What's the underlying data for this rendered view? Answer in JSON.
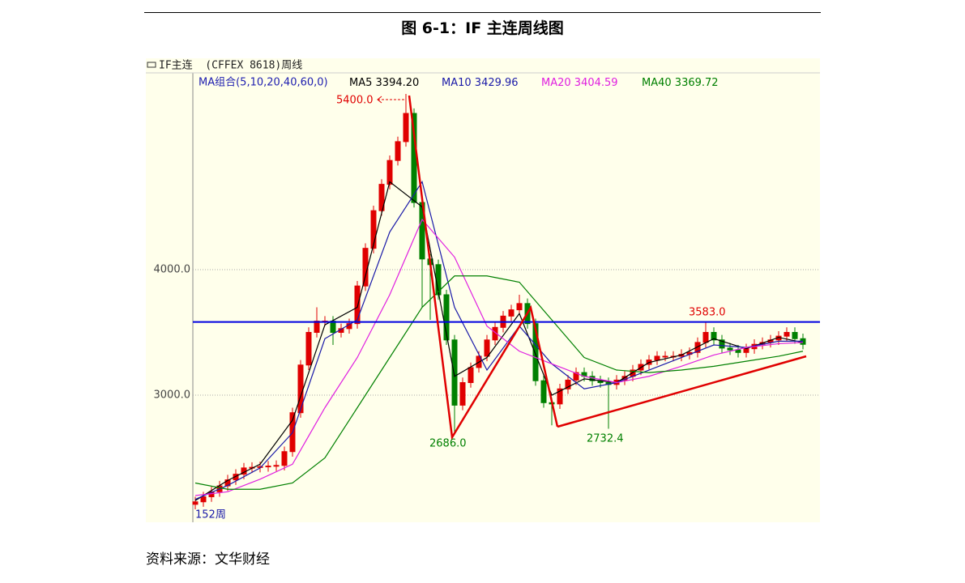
{
  "caption": "图 6-1：IF 主连周线图",
  "source": "资料来源：文华财经",
  "chart_data": {
    "type": "candlestick",
    "title": "IF主连  (CFFEX 8618)周线",
    "subtitle": "MA组合(5,10,20,40,60,0)",
    "footer_label": "152周",
    "up_color": "#e00000",
    "down_color": "#008000",
    "x": [
      0,
      2,
      4,
      6,
      8,
      10,
      12,
      14,
      16,
      18,
      20,
      22,
      24,
      26,
      28,
      30,
      32,
      34,
      36,
      38,
      40,
      42,
      44,
      46,
      48,
      50,
      52,
      54,
      56,
      58,
      60,
      62,
      64,
      66,
      68,
      70,
      72,
      74,
      76,
      78,
      80,
      82,
      84,
      86,
      88,
      90,
      92,
      94,
      96,
      98,
      100,
      102,
      104,
      106,
      108,
      110,
      112,
      114,
      116,
      118,
      120,
      122,
      124,
      126,
      128,
      130,
      132,
      134,
      136,
      138,
      140,
      142,
      144,
      146,
      148,
      150
    ],
    "open": [
      2130,
      2150,
      2190,
      2230,
      2277,
      2325,
      2370,
      2420,
      2425,
      2430,
      2435,
      2440,
      2550,
      2860,
      3240,
      3500,
      3590,
      3590,
      3500,
      3530,
      3570,
      3870,
      4170,
      4470,
      4680,
      4870,
      5020,
      5245,
      4535,
      4085,
      4040,
      3800,
      3440,
      2920,
      3100,
      3220,
      3310,
      3440,
      3540,
      3630,
      3680,
      3730,
      3570,
      3115,
      2940,
      2930,
      3050,
      3120,
      3180,
      3150,
      3115,
      3100,
      3085,
      3120,
      3150,
      3200,
      3245,
      3280,
      3310,
      3310,
      3310,
      3325,
      3340,
      3420,
      3500,
      3440,
      3375,
      3360,
      3340,
      3370,
      3405,
      3420,
      3440,
      3470,
      3500,
      3450
    ],
    "high": [
      2190,
      2230,
      2270,
      2317,
      2365,
      2410,
      2460,
      2465,
      2470,
      2475,
      2480,
      2590,
      2900,
      3280,
      3540,
      3700,
      3630,
      3630,
      3570,
      3610,
      3910,
      4210,
      4510,
      4720,
      4910,
      5060,
      5400,
      5285,
      4575,
      4125,
      4080,
      3840,
      3480,
      3140,
      3260,
      3350,
      3480,
      3580,
      3670,
      3720,
      3800,
      3770,
      3610,
      3155,
      2980,
      3090,
      3160,
      3220,
      3220,
      3190,
      3155,
      3140,
      3160,
      3190,
      3240,
      3285,
      3320,
      3350,
      3350,
      3350,
      3365,
      3380,
      3460,
      3583,
      3540,
      3480,
      3415,
      3400,
      3410,
      3445,
      3460,
      3480,
      3510,
      3540,
      3540,
      3490
    ],
    "low": [
      2090,
      2110,
      2150,
      2190,
      2237,
      2285,
      2330,
      2380,
      2385,
      2390,
      2395,
      2400,
      2510,
      2820,
      3200,
      3460,
      3550,
      3400,
      3460,
      3490,
      3530,
      3830,
      4130,
      4430,
      4640,
      4830,
      4980,
      4495,
      3700,
      3600,
      3760,
      3400,
      2686,
      2880,
      3060,
      3180,
      3270,
      3400,
      3500,
      3590,
      3640,
      3530,
      3075,
      2900,
      2760,
      2890,
      3010,
      3080,
      3110,
      3075,
      3060,
      2732.4,
      3045,
      3080,
      3110,
      3160,
      3205,
      3240,
      3270,
      3270,
      3270,
      3285,
      3300,
      3380,
      3400,
      3335,
      3320,
      3300,
      3300,
      3330,
      3365,
      3380,
      3400,
      3430,
      3410,
      3365
    ],
    "close": [
      2150,
      2190,
      2230,
      2277,
      2325,
      2370,
      2420,
      2425,
      2430,
      2435,
      2440,
      2550,
      2860,
      3240,
      3500,
      3590,
      3590,
      3500,
      3530,
      3570,
      3870,
      4170,
      4470,
      4680,
      4870,
      5020,
      5245,
      4535,
      4085,
      4040,
      3800,
      3440,
      2920,
      3100,
      3220,
      3310,
      3440,
      3540,
      3630,
      3680,
      3730,
      3570,
      3115,
      2940,
      2930,
      3050,
      3120,
      3180,
      3150,
      3115,
      3100,
      3085,
      3120,
      3150,
      3200,
      3245,
      3280,
      3310,
      3310,
      3310,
      3325,
      3340,
      3420,
      3500,
      3440,
      3375,
      3360,
      3340,
      3370,
      3405,
      3420,
      3440,
      3470,
      3500,
      3450,
      3405
    ],
    "series": [
      {
        "name": "MA5",
        "value_label": "3394.20",
        "color": "#000000",
        "x": [
          0,
          8,
          16,
          24,
          32,
          40,
          48,
          56,
          64,
          72,
          80,
          88,
          96,
          104,
          112,
          120,
          128,
          136,
          144,
          150
        ],
        "values": [
          2160,
          2320,
          2450,
          2800,
          3560,
          3700,
          4700,
          4500,
          3150,
          3300,
          3650,
          3000,
          3130,
          3100,
          3260,
          3320,
          3450,
          3370,
          3460,
          3420
        ]
      },
      {
        "name": "MA10",
        "value_label": "3429.96",
        "color": "#1a1aa8",
        "x": [
          0,
          8,
          16,
          24,
          32,
          40,
          48,
          56,
          64,
          72,
          80,
          88,
          96,
          104,
          112,
          120,
          128,
          136,
          144,
          150
        ],
        "values": [
          2170,
          2280,
          2420,
          2700,
          3450,
          3600,
          4300,
          4700,
          3700,
          3200,
          3550,
          3250,
          3050,
          3100,
          3200,
          3300,
          3400,
          3380,
          3430,
          3430
        ]
      },
      {
        "name": "MA20",
        "value_label": "3404.59",
        "color": "#e020e0",
        "x": [
          0,
          8,
          16,
          24,
          32,
          40,
          48,
          56,
          64,
          72,
          80,
          88,
          96,
          104,
          112,
          120,
          128,
          136,
          144,
          150
        ],
        "values": [
          2200,
          2230,
          2330,
          2450,
          2900,
          3300,
          3800,
          4400,
          4100,
          3550,
          3350,
          3250,
          3150,
          3100,
          3150,
          3230,
          3320,
          3380,
          3410,
          3420
        ]
      },
      {
        "name": "MA40",
        "value_label": "3369.72",
        "color": "#008000",
        "x": [
          0,
          8,
          16,
          24,
          32,
          40,
          48,
          56,
          64,
          72,
          80,
          88,
          96,
          104,
          112,
          120,
          128,
          136,
          144,
          150
        ],
        "values": [
          2300,
          2250,
          2250,
          2300,
          2500,
          2900,
          3300,
          3700,
          3950,
          3950,
          3900,
          3600,
          3300,
          3200,
          3180,
          3200,
          3230,
          3270,
          3310,
          3350
        ]
      }
    ],
    "reference_line": {
      "value": 3583,
      "color": "#0000e0"
    },
    "annotations": [
      "5400.0",
      "3583.0",
      "2686.0",
      "2732.4"
    ],
    "xlim": [
      -0.6,
      154.2
    ],
    "ylim": [
      1987,
      5568
    ],
    "yticks": [
      {
        "value": 3000,
        "label": "3000.0"
      },
      {
        "value": 4000,
        "label": "4000.0"
      }
    ],
    "grid": true
  }
}
